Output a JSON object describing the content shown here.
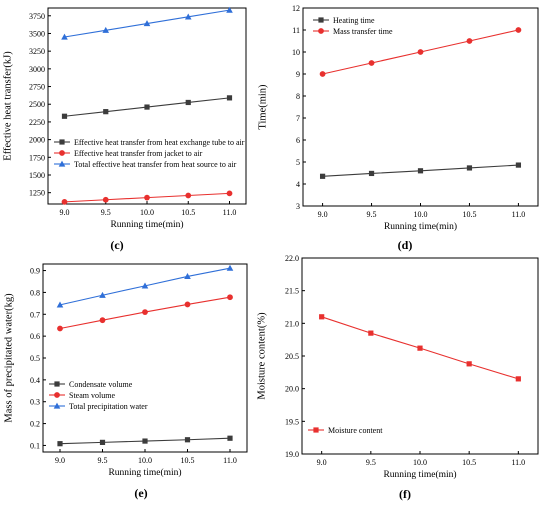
{
  "chart_data": [
    {
      "panel_label": "(c)",
      "type": "line",
      "xlabel": "Running time(min)",
      "ylabel": "Effective heat transfer(kJ)",
      "x": [
        9.0,
        9.5,
        10.0,
        10.5,
        11.0
      ],
      "x_ticks": [
        "9.0",
        "9.5",
        "10.0",
        "10.5",
        "11.0"
      ],
      "xlim": [
        8.8,
        11.2
      ],
      "ylim": [
        1090,
        3860
      ],
      "y_ticks": [
        "1250",
        "1500",
        "1750",
        "2000",
        "2250",
        "2500",
        "2750",
        "3000",
        "3250",
        "3500",
        "3750"
      ],
      "legend_position": "lower-left",
      "series": [
        {
          "name": "Effective heat transfer from heat exchange tube to air",
          "color": "#3c3c3c",
          "marker": "square",
          "values": [
            2330,
            2395,
            2460,
            2525,
            2590
          ]
        },
        {
          "name": "Effective heat transfer from jacket to air",
          "color": "#e8302e",
          "marker": "circle",
          "values": [
            1120,
            1150,
            1180,
            1210,
            1240
          ]
        },
        {
          "name": "Total effective heat transfer from heat source to air",
          "color": "#2f6fd8",
          "marker": "triangle",
          "values": [
            3450,
            3545,
            3640,
            3735,
            3830
          ]
        }
      ]
    },
    {
      "panel_label": "(d)",
      "type": "line",
      "xlabel": "Running time(min)",
      "ylabel": "Time(min)",
      "x": [
        9.0,
        9.5,
        10.0,
        10.5,
        11.0
      ],
      "x_ticks": [
        "9.0",
        "9.5",
        "10.0",
        "10.5",
        "11.0"
      ],
      "xlim": [
        8.8,
        11.2
      ],
      "ylim": [
        3,
        12
      ],
      "y_ticks": [
        "3",
        "4",
        "5",
        "6",
        "7",
        "8",
        "9",
        "10",
        "11",
        "12"
      ],
      "legend_position": "top-left",
      "series": [
        {
          "name": "Heating time",
          "color": "#3c3c3c",
          "marker": "square",
          "values": [
            4.35,
            4.48,
            4.6,
            4.73,
            4.86
          ]
        },
        {
          "name": "Mass transfer time",
          "color": "#e8302e",
          "marker": "circle",
          "values": [
            9.0,
            9.5,
            10.0,
            10.5,
            11.0
          ]
        }
      ]
    },
    {
      "panel_label": "(e)",
      "type": "line",
      "xlabel": "Running time(min)",
      "ylabel": "Mass of precipitated water(kg)",
      "x": [
        9.0,
        9.5,
        10.0,
        10.5,
        11.0
      ],
      "x_ticks": [
        "9.0",
        "9.5",
        "10.0",
        "10.5",
        "11.0"
      ],
      "xlim": [
        8.8,
        11.2
      ],
      "ylim": [
        0.07,
        0.93
      ],
      "y_ticks": [
        "0.1",
        "0.2",
        "0.3",
        "0.4",
        "0.5",
        "0.6",
        "0.7",
        "0.8",
        "0.9"
      ],
      "legend_position": "lower-left",
      "series": [
        {
          "name": "Condensate volume",
          "color": "#3c3c3c",
          "marker": "square",
          "values": [
            0.108,
            0.114,
            0.12,
            0.126,
            0.133
          ]
        },
        {
          "name": "Steam volume",
          "color": "#e8302e",
          "marker": "circle",
          "values": [
            0.635,
            0.673,
            0.71,
            0.745,
            0.778
          ]
        },
        {
          "name": "Total precipitation water",
          "color": "#2f6fd8",
          "marker": "triangle",
          "values": [
            0.743,
            0.787,
            0.83,
            0.873,
            0.911
          ]
        }
      ]
    },
    {
      "panel_label": "(f)",
      "type": "line",
      "xlabel": "Running time(min)",
      "ylabel": "Moisture content(%)",
      "x": [
        9.0,
        9.5,
        10.0,
        10.5,
        11.0
      ],
      "x_ticks": [
        "9.0",
        "9.5",
        "10.0",
        "10.5",
        "11.0"
      ],
      "xlim": [
        8.8,
        11.2
      ],
      "ylim": [
        19.0,
        22.0
      ],
      "y_ticks": [
        "19.0",
        "19.5",
        "20.0",
        "20.5",
        "21.0",
        "21.5",
        "22.0"
      ],
      "legend_position": "lower-left",
      "series": [
        {
          "name": "Moisture content",
          "color": "#e8302e",
          "marker": "square",
          "values": [
            21.1,
            20.85,
            20.62,
            20.38,
            20.15
          ]
        }
      ]
    }
  ]
}
